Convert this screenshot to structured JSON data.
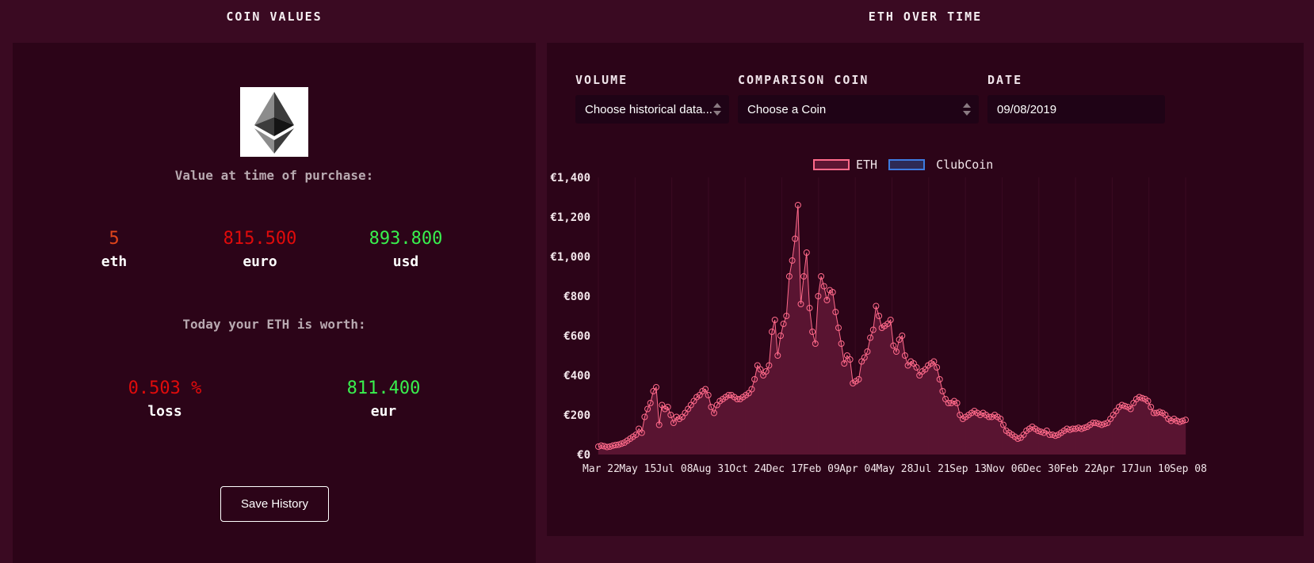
{
  "headers": {
    "left": "COIN VALUES",
    "right": "ETH OVER TIME"
  },
  "purchase": {
    "label": "Value at time of purchase:",
    "items": [
      {
        "value": "5",
        "unit": "eth",
        "color": "#e0451b"
      },
      {
        "value": "815.500",
        "unit": "euro",
        "color": "#e00b0b"
      },
      {
        "value": "893.800",
        "unit": "usd",
        "color": "#39f04e"
      }
    ]
  },
  "today": {
    "label": "Today your ETH is worth:",
    "items": [
      {
        "value": "0.503 %",
        "unit": "loss",
        "color": "#e00b0b"
      },
      {
        "value": "811.400",
        "unit": "eur",
        "color": "#39f04e"
      }
    ]
  },
  "save_button": "Save History",
  "controls": {
    "volume": {
      "label": "VOLUME",
      "value": "Choose historical data..."
    },
    "comparison": {
      "label": "COMPARISON COIN",
      "value": "Choose a Coin"
    },
    "date": {
      "label": "DATE",
      "value": "09/08/2019"
    }
  },
  "chart_data": {
    "type": "area",
    "legend": [
      {
        "name": "ETH",
        "fill": "#5c1533",
        "stroke": "#ff6a8a"
      },
      {
        "name": "ClubCoin",
        "fill": "#2e2a55",
        "stroke": "#3d7be0"
      }
    ],
    "ylim": [
      0,
      1400
    ],
    "yticks": [
      "€0",
      "€200",
      "€400",
      "€600",
      "€800",
      "€1,000",
      "€1,200",
      "€1,400"
    ],
    "xticks": [
      "Mar 22",
      "May 15",
      "Jul 08",
      "Aug 31",
      "Oct 24",
      "Dec 17",
      "Feb 09",
      "Apr 04",
      "May 28",
      "Jul 21",
      "Sep 13",
      "Nov 06",
      "Dec 30",
      "Feb 22",
      "Apr 17",
      "Jun 10",
      "Sep 08"
    ],
    "series": [
      {
        "name": "ETH",
        "values": [
          40,
          45,
          42,
          38,
          40,
          45,
          48,
          50,
          55,
          60,
          70,
          80,
          90,
          100,
          130,
          110,
          190,
          230,
          260,
          320,
          340,
          150,
          250,
          230,
          240,
          200,
          160,
          190,
          180,
          190,
          210,
          230,
          250,
          270,
          290,
          300,
          320,
          330,
          300,
          240,
          210,
          250,
          270,
          280,
          290,
          300,
          300,
          290,
          280,
          280,
          290,
          300,
          310,
          330,
          380,
          450,
          430,
          400,
          420,
          450,
          620,
          680,
          500,
          600,
          660,
          700,
          900,
          980,
          1090,
          1260,
          760,
          900,
          1020,
          740,
          620,
          560,
          800,
          900,
          850,
          780,
          830,
          820,
          720,
          640,
          560,
          460,
          500,
          480,
          360,
          370,
          380,
          470,
          490,
          520,
          590,
          630,
          750,
          700,
          640,
          650,
          660,
          680,
          550,
          520,
          580,
          600,
          500,
          450,
          470,
          460,
          440,
          400,
          420,
          430,
          450,
          460,
          470,
          440,
          380,
          320,
          280,
          260,
          260,
          270,
          260,
          200,
          180,
          190,
          200,
          210,
          220,
          210,
          200,
          210,
          200,
          190,
          190,
          200,
          190,
          180,
          150,
          120,
          110,
          100,
          90,
          80,
          85,
          100,
          120,
          130,
          140,
          130,
          120,
          115,
          110,
          120,
          100,
          100,
          95,
          100,
          110,
          120,
          130,
          125,
          130,
          130,
          135,
          130,
          135,
          140,
          150,
          160,
          160,
          155,
          150,
          155,
          160,
          180,
          200,
          220,
          240,
          250,
          245,
          240,
          230,
          260,
          280,
          290,
          285,
          280,
          270,
          240,
          210,
          210,
          215,
          210,
          200,
          180,
          170,
          180,
          170,
          165,
          170,
          175
        ]
      }
    ]
  }
}
